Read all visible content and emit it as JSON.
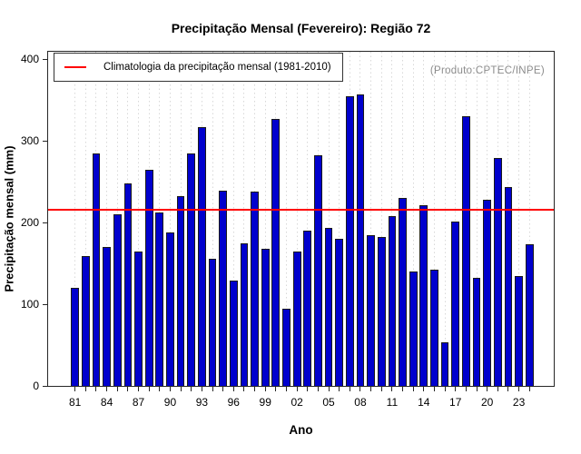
{
  "chart_data": {
    "type": "bar",
    "title": "Precipitação Mensal (Fevereiro): Região 72",
    "xlabel": "Ano",
    "ylabel": "Precipitação mensal (mm)",
    "ylim": [
      0,
      400
    ],
    "y_ticks": [
      0,
      100,
      200,
      300,
      400
    ],
    "x_tick_labels": [
      "81",
      "84",
      "87",
      "90",
      "93",
      "96",
      "99",
      "02",
      "05",
      "08",
      "11",
      "14",
      "17",
      "20",
      "23"
    ],
    "x_tick_step": 3,
    "categories": [
      1981,
      1982,
      1983,
      1984,
      1985,
      1986,
      1987,
      1988,
      1989,
      1990,
      1991,
      1992,
      1993,
      1994,
      1995,
      1996,
      1997,
      1998,
      1999,
      2000,
      2001,
      2002,
      2003,
      2004,
      2005,
      2006,
      2007,
      2008,
      2009,
      2010,
      2011,
      2012,
      2013,
      2014,
      2015,
      2016,
      2017,
      2018,
      2019,
      2020,
      2021,
      2022,
      2023,
      2024
    ],
    "values": [
      120,
      159,
      284,
      170,
      210,
      248,
      165,
      265,
      212,
      188,
      232,
      285,
      317,
      156,
      239,
      129,
      175,
      238,
      168,
      327,
      95,
      165,
      190,
      282,
      193,
      180,
      355,
      357,
      185,
      182,
      208,
      230,
      140,
      221,
      142,
      53,
      201,
      330,
      132,
      228,
      279,
      243,
      134,
      173
    ],
    "climatology": {
      "value": 215.7,
      "color": "#FF0000"
    },
    "legend": [
      {
        "label": "Climatologia da precipitação mensal (1981-2010)",
        "color": "#FF0000"
      }
    ],
    "legend_position": "top-left",
    "annotation": "(Produto:CPTEC/INPE)",
    "grid": true,
    "colors": {
      "bar_fill": "#0000CD",
      "bar_border": "#1A1A1A",
      "grid": "#D8D8D8",
      "axis": "#262626",
      "annotation_text": "#8C8C8C"
    }
  }
}
